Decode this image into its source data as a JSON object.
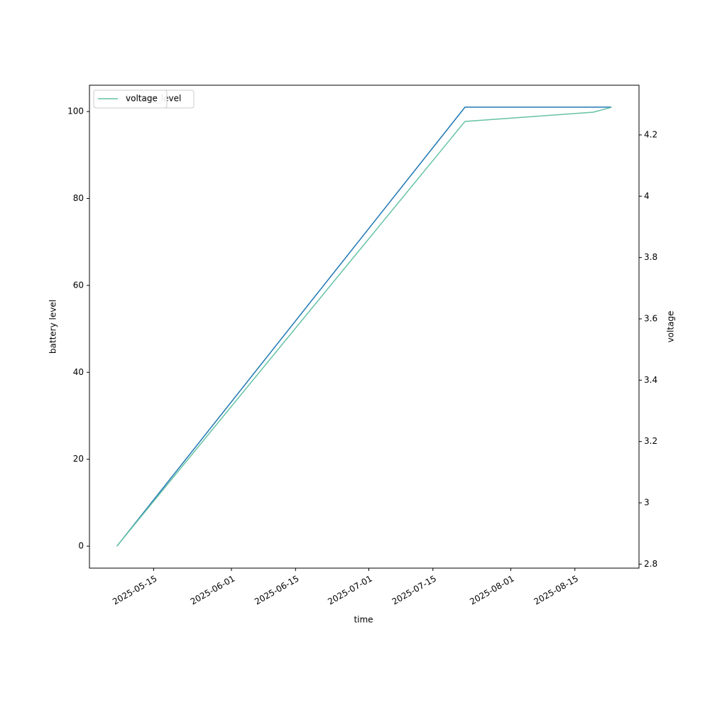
{
  "chart_data": {
    "type": "line",
    "x_label": "time",
    "y_label": "battery level",
    "y2_label": "voltage",
    "x": [
      "2025-05-07",
      "2025-07-22",
      "2025-08-19",
      "2025-08-23"
    ],
    "series": [
      {
        "name": "battery_level",
        "color": "#1f77b4",
        "values": [
          0,
          101,
          101,
          101
        ]
      },
      {
        "name": "voltage",
        "color": "#66c2a5",
        "axis": "y2",
        "values": [
          2.859,
          4.244,
          4.274,
          4.29
        ]
      }
    ],
    "xlim": [
      "2025-05-01",
      "2025-08-29"
    ],
    "xticks": [
      "2025-05-15",
      "2025-06-01",
      "2025-06-15",
      "2025-07-01",
      "2025-07-15",
      "2025-08-01",
      "2025-08-15"
    ],
    "ylim": [
      -5.05,
      106.05
    ],
    "yticks": [
      0,
      20,
      40,
      60,
      80,
      100
    ],
    "y2lim": [
      2.787,
      4.362
    ],
    "y2ticks": [
      2.8,
      3.0,
      3.2,
      3.4,
      3.6,
      3.8,
      4.0,
      4.2
    ],
    "legend": "upper left"
  }
}
